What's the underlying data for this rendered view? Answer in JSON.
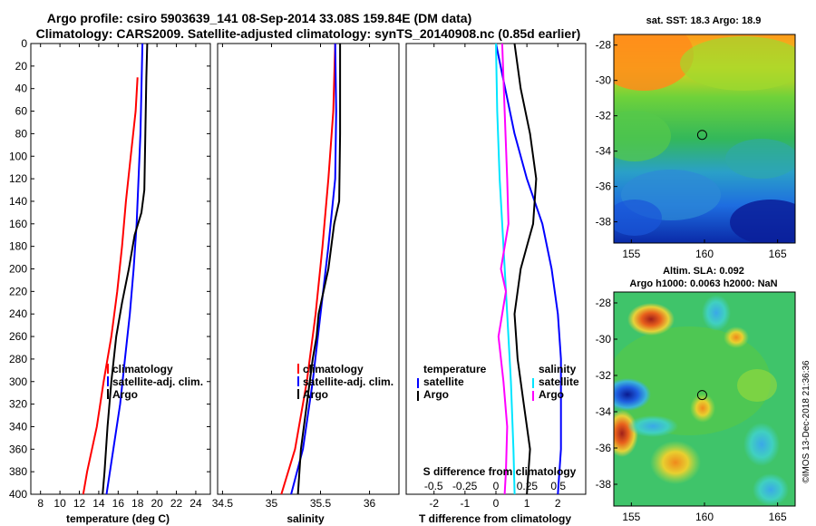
{
  "title_line1": "Argo profile: csiro 5903639_141 08-Sep-2014 33.08S 159.84E (DM data)",
  "title_line2": "Climatology: CARS2009. Satellite-adjusted climatology: synTS_20140908.nc (0.85d earlier)",
  "watermark": "©IMOS 13-Dec-2018 21:36:36",
  "colors": {
    "climatology": "#ff0000",
    "satellite": "#0000ff",
    "argo": "#000000",
    "salinity_argo": "#ff00ff",
    "salinity_sat": "#00e5ff"
  },
  "chart_data": [
    {
      "type": "line",
      "name": "temperature",
      "xlabel": "temperature (deg C)",
      "xlim": [
        7,
        25.5
      ],
      "ylim": [
        400,
        0
      ],
      "xticks": [
        8,
        10,
        12,
        14,
        16,
        18,
        20,
        22,
        24
      ],
      "yticks": [
        0,
        20,
        40,
        60,
        80,
        100,
        120,
        140,
        160,
        180,
        200,
        220,
        240,
        260,
        280,
        300,
        320,
        340,
        360,
        380,
        400
      ],
      "legend": [
        "climatology",
        "satellite-adj. clim.",
        "Argo"
      ],
      "series": [
        {
          "name": "climatology",
          "color": "#ff0000",
          "depth": [
            30,
            60,
            100,
            140,
            180,
            220,
            260,
            300,
            340,
            380,
            400
          ],
          "values": [
            18.0,
            17.8,
            17.3,
            16.8,
            16.4,
            15.9,
            15.3,
            14.5,
            13.8,
            12.8,
            12.4
          ]
        },
        {
          "name": "satellite-adj. clim.",
          "color": "#0000ff",
          "depth": [
            0,
            40,
            80,
            120,
            160,
            200,
            240,
            280,
            320,
            360,
            400
          ],
          "values": [
            18.5,
            18.4,
            18.3,
            18.1,
            17.9,
            17.6,
            17.2,
            16.7,
            16.2,
            15.5,
            14.8
          ]
        },
        {
          "name": "Argo",
          "color": "#000000",
          "depth": [
            0,
            30,
            80,
            130,
            150,
            170,
            200,
            230,
            260,
            300,
            340,
            380,
            400
          ],
          "values": [
            19.0,
            18.9,
            18.8,
            18.7,
            18.4,
            17.7,
            17.1,
            16.4,
            15.8,
            15.3,
            14.9,
            14.6,
            14.4
          ]
        }
      ]
    },
    {
      "type": "line",
      "name": "salinity",
      "xlabel": "salinity",
      "xlim": [
        34.45,
        36.3
      ],
      "ylim": [
        400,
        0
      ],
      "xticks": [
        34.5,
        35,
        35.5,
        36
      ],
      "xtick_labels": [
        "34.5",
        "35",
        "35.5",
        "36"
      ],
      "legend": [
        "climatology",
        "satellite-adj. clim.",
        "Argo"
      ],
      "series": [
        {
          "name": "climatology",
          "color": "#ff0000",
          "depth": [
            0,
            60,
            120,
            180,
            240,
            300,
            360,
            400
          ],
          "values": [
            35.65,
            35.63,
            35.58,
            35.52,
            35.45,
            35.36,
            35.24,
            35.1
          ]
        },
        {
          "name": "satellite-adj. clim.",
          "color": "#0000ff",
          "depth": [
            0,
            60,
            120,
            180,
            240,
            300,
            360,
            400
          ],
          "values": [
            35.65,
            35.66,
            35.65,
            35.58,
            35.5,
            35.42,
            35.32,
            35.2
          ]
        },
        {
          "name": "Argo",
          "color": "#000000",
          "depth": [
            0,
            40,
            80,
            140,
            160,
            200,
            240,
            260,
            280,
            320,
            360,
            400
          ],
          "values": [
            35.7,
            35.7,
            35.7,
            35.69,
            35.64,
            35.58,
            35.48,
            35.46,
            35.42,
            35.36,
            35.3,
            35.27
          ]
        }
      ]
    },
    {
      "type": "line",
      "name": "differences",
      "xlabel": "T difference from climatology",
      "xlabel_top": "S difference from climatology",
      "xlim": [
        -2.9,
        2.9
      ],
      "ylim": [
        400,
        0
      ],
      "xticks": [
        -2,
        -1,
        0,
        1,
        2
      ],
      "xtick_labels": [
        "-2",
        "-1",
        "0",
        "1",
        "2"
      ],
      "s_xticks": [
        -0.5,
        -0.25,
        0,
        0.25,
        0.5
      ],
      "s_xtick_labels": [
        "-0.5",
        "-0.25",
        "0",
        "0.25",
        "0.5"
      ],
      "legend_temperature": {
        "title": "temperature",
        "items": [
          "satellite",
          "Argo"
        ]
      },
      "legend_salinity": {
        "title": "salinity",
        "items": [
          "satellite",
          "Argo"
        ]
      },
      "series": [
        {
          "name": "T satellite",
          "color": "#0000ff",
          "axis": "T",
          "depth": [
            0,
            40,
            80,
            120,
            160,
            200,
            240,
            280,
            320,
            360,
            400
          ],
          "values": [
            0,
            0.3,
            0.6,
            1.0,
            1.5,
            1.8,
            2.0,
            2.1,
            2.1,
            2.1,
            2.0
          ]
        },
        {
          "name": "T Argo",
          "color": "#000000",
          "axis": "T",
          "depth": [
            0,
            40,
            80,
            120,
            160,
            180,
            200,
            240,
            280,
            320,
            360,
            400
          ],
          "values": [
            0.6,
            0.8,
            1.1,
            1.3,
            1.2,
            1.0,
            0.8,
            0.6,
            0.7,
            0.9,
            1.1,
            1.0
          ]
        },
        {
          "name": "S satellite",
          "color": "#00e5ff",
          "axis": "S",
          "depth": [
            0,
            60,
            120,
            180,
            240,
            300,
            360,
            400
          ],
          "values": [
            0,
            0.01,
            0.03,
            0.06,
            0.09,
            0.12,
            0.14,
            0.15
          ]
        },
        {
          "name": "S Argo",
          "color": "#ff00ff",
          "axis": "S",
          "depth": [
            0,
            60,
            120,
            160,
            200,
            220,
            260,
            300,
            340,
            380,
            400
          ],
          "values": [
            0.05,
            0.07,
            0.09,
            0.1,
            0.04,
            0.08,
            0.02,
            0.06,
            0.09,
            0.08,
            0.07
          ]
        }
      ]
    },
    {
      "type": "heatmap",
      "name": "sst_map",
      "title": "sat. SST: 18.3  Argo: 18.9",
      "xlim": [
        153.8,
        166.2
      ],
      "ylim": [
        -39.2,
        -27.4
      ],
      "xticks": [
        155,
        160,
        165
      ],
      "xtick_labels": [
        "155",
        "160",
        "165"
      ],
      "yticks": [
        -28,
        -30,
        -32,
        -34,
        -36,
        -38
      ],
      "ytick_labels": [
        "-28",
        "-30",
        "-32",
        "-34",
        "-36",
        "-38"
      ],
      "profile_location": [
        159.84,
        -33.08
      ]
    },
    {
      "type": "heatmap",
      "name": "sla_map",
      "title_line1": "Altim. SLA: 0.092",
      "title_line2": "Argo h1000: 0.0063 h2000: NaN",
      "xlim": [
        153.8,
        166.2
      ],
      "ylim": [
        -39.2,
        -27.4
      ],
      "xticks": [
        155,
        160,
        165
      ],
      "xtick_labels": [
        "155",
        "160",
        "165"
      ],
      "yticks": [
        -28,
        -30,
        -32,
        -34,
        -36,
        -38
      ],
      "ytick_labels": [
        "-28",
        "-30",
        "-32",
        "-34",
        "-36",
        "-38"
      ],
      "profile_location": [
        159.84,
        -33.08
      ]
    }
  ]
}
